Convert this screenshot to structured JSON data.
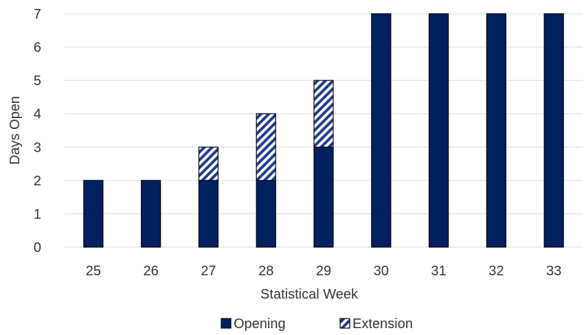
{
  "chart_data": {
    "type": "bar",
    "stacked": true,
    "categories": [
      "25",
      "26",
      "27",
      "28",
      "29",
      "30",
      "31",
      "32",
      "33"
    ],
    "series": [
      {
        "name": "Opening",
        "values": [
          2,
          2,
          2,
          2,
          3,
          7,
          7,
          7,
          7
        ],
        "color": "#002060",
        "pattern": "solid"
      },
      {
        "name": "Extension",
        "values": [
          0,
          0,
          1,
          2,
          2,
          0,
          0,
          0,
          0
        ],
        "color": "#1f3c88",
        "pattern": "diagonal-stripes"
      }
    ],
    "xlabel": "Statistical Week",
    "ylabel": "Days Open",
    "ylim": [
      0,
      7
    ],
    "yticks": [
      0,
      1,
      2,
      3,
      4,
      5,
      6,
      7
    ],
    "grid": true,
    "legend_position": "bottom"
  }
}
